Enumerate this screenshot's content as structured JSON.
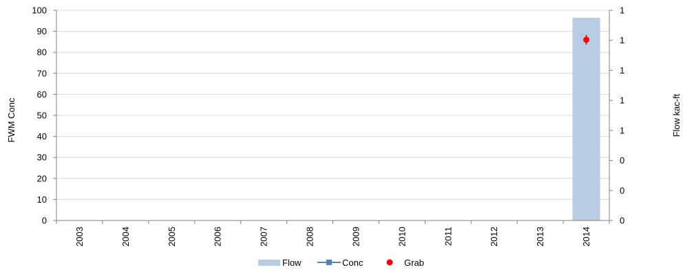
{
  "chart_data": {
    "type": "bar",
    "categories": [
      "2003",
      "2004",
      "2005",
      "2006",
      "2007",
      "2008",
      "2009",
      "2010",
      "2011",
      "2012",
      "2013",
      "2014"
    ],
    "series": [
      {
        "name": "Flow",
        "kind": "bar",
        "axis": "right",
        "color": "#b8cce4",
        "values": [
          null,
          null,
          null,
          null,
          null,
          null,
          null,
          null,
          null,
          null,
          null,
          1.35
        ]
      },
      {
        "name": "Conc",
        "kind": "line",
        "axis": "left",
        "color": "#4f81bd",
        "values": [
          null,
          null,
          null,
          null,
          null,
          null,
          null,
          null,
          null,
          null,
          null,
          null
        ]
      },
      {
        "name": "Grab",
        "kind": "scatter",
        "axis": "left",
        "color": "#ff0000",
        "values": [
          null,
          null,
          null,
          null,
          null,
          null,
          null,
          null,
          null,
          null,
          null,
          86
        ]
      }
    ],
    "ylabel": "FWM Conc",
    "y2label": "Flow kac-ft",
    "ylim": [
      0,
      100
    ],
    "yticks": [
      "0",
      "10",
      "20",
      "30",
      "40",
      "50",
      "60",
      "70",
      "80",
      "90",
      "100"
    ],
    "y2lim": [
      0,
      1.4
    ],
    "y2ticks": [
      "0",
      "0",
      "0",
      "1",
      "1",
      "1",
      "1",
      "1"
    ],
    "grid": true,
    "legend_position": "bottom"
  }
}
